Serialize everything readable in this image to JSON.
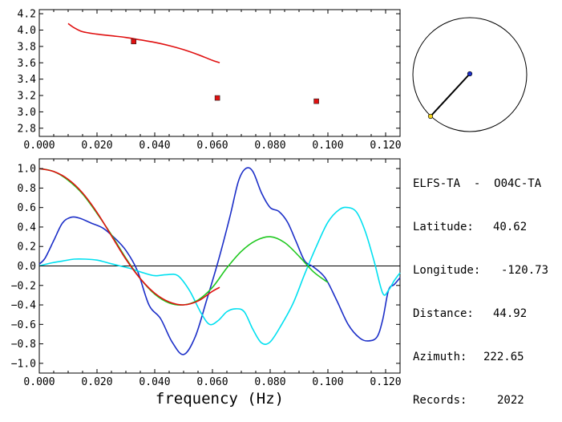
{
  "station": {
    "title": "ELFS-TA  -  O04C-TA",
    "rows": [
      {
        "label": "Latitude:",
        "value": "40.62"
      },
      {
        "label": "Longitude:",
        "value": "-120.73"
      },
      {
        "label": "Distance:",
        "value": "44.92"
      },
      {
        "label": "Azimuth:",
        "value": "222.65"
      },
      {
        "label": "Records:",
        "value": "2022"
      }
    ]
  },
  "chart_data": [
    {
      "type": "scatter",
      "title": "",
      "xlabel": "",
      "ylabel": "",
      "xlim": [
        0.0,
        0.125
      ],
      "ylim": [
        2.7,
        4.25
      ],
      "x_ticks": [
        0.0,
        0.02,
        0.04,
        0.06,
        0.08,
        0.1,
        0.12
      ],
      "x_tick_labels": [
        "0.000",
        "0.020",
        "0.040",
        "0.060",
        "0.080",
        "0.100",
        "0.120"
      ],
      "y_ticks": [
        2.8,
        3.0,
        3.2,
        3.4,
        3.6,
        3.8,
        4.0,
        4.2
      ],
      "y_tick_labels": [
        "2.8",
        "3.0",
        "3.2",
        "3.4",
        "3.6",
        "3.8",
        "4.0",
        "4.2"
      ],
      "series": [
        {
          "kind": "line",
          "color": "#e01010",
          "x": [
            0.01,
            0.012,
            0.015,
            0.02,
            0.025,
            0.03,
            0.035,
            0.04,
            0.045,
            0.05,
            0.055,
            0.06,
            0.0625
          ],
          "y": [
            4.08,
            4.03,
            3.98,
            3.95,
            3.93,
            3.91,
            3.88,
            3.85,
            3.81,
            3.76,
            3.7,
            3.63,
            3.6
          ]
        },
        {
          "kind": "points",
          "color": "#e01010",
          "x": [
            0.0327,
            0.0617,
            0.096
          ],
          "y": [
            3.86,
            3.17,
            3.13
          ]
        }
      ]
    },
    {
      "type": "line",
      "title": "",
      "xlabel": "frequency (Hz)",
      "ylabel": "",
      "xlim": [
        0.0,
        0.125
      ],
      "ylim": [
        -1.1,
        1.1
      ],
      "x_ticks": [
        0.0,
        0.02,
        0.04,
        0.06,
        0.08,
        0.1,
        0.12
      ],
      "x_tick_labels": [
        "0.000",
        "0.020",
        "0.040",
        "0.060",
        "0.080",
        "0.100",
        "0.120"
      ],
      "y_ticks": [
        1.0,
        0.8,
        0.6,
        0.4,
        0.2,
        0.0,
        -0.2,
        -0.4,
        -0.6,
        -0.8,
        -1.0
      ],
      "y_tick_labels": [
        "1.0",
        "0.8",
        "0.6",
        "0.4",
        "0.2",
        "0.0",
        "−0.2",
        "−0.4",
        "−0.6",
        "−0.8",
        "−1.0"
      ],
      "zero_line": true,
      "series": [
        {
          "color": "#1c2fc8",
          "x": [
            0.0,
            0.002,
            0.005,
            0.008,
            0.011,
            0.014,
            0.018,
            0.022,
            0.026,
            0.03,
            0.034,
            0.038,
            0.042,
            0.046,
            0.05,
            0.054,
            0.058,
            0.062,
            0.066,
            0.069,
            0.0715,
            0.074,
            0.077,
            0.08,
            0.083,
            0.086,
            0.089,
            0.092,
            0.095,
            0.099,
            0.103,
            0.107,
            0.111,
            0.114,
            0.117,
            0.119,
            0.121,
            0.123,
            0.125
          ],
          "y": [
            0.02,
            0.08,
            0.26,
            0.44,
            0.5,
            0.49,
            0.44,
            0.39,
            0.29,
            0.16,
            -0.05,
            -0.4,
            -0.54,
            -0.78,
            -0.91,
            -0.73,
            -0.35,
            0.05,
            0.5,
            0.87,
            1.0,
            0.97,
            0.75,
            0.6,
            0.56,
            0.45,
            0.25,
            0.05,
            -0.01,
            -0.12,
            -0.35,
            -0.6,
            -0.74,
            -0.77,
            -0.73,
            -0.55,
            -0.25,
            -0.19,
            -0.12
          ]
        },
        {
          "color": "#00e0f0",
          "x": [
            0.0,
            0.004,
            0.008,
            0.012,
            0.016,
            0.02,
            0.024,
            0.028,
            0.032,
            0.036,
            0.04,
            0.044,
            0.048,
            0.052,
            0.056,
            0.059,
            0.062,
            0.065,
            0.068,
            0.071,
            0.074,
            0.077,
            0.08,
            0.084,
            0.088,
            0.092,
            0.096,
            0.1,
            0.104,
            0.107,
            0.11,
            0.113,
            0.116,
            0.119,
            0.121,
            0.123,
            0.125
          ],
          "y": [
            0.0,
            0.03,
            0.05,
            0.07,
            0.07,
            0.06,
            0.03,
            0.0,
            -0.03,
            -0.07,
            -0.1,
            -0.09,
            -0.1,
            -0.25,
            -0.48,
            -0.6,
            -0.56,
            -0.47,
            -0.44,
            -0.47,
            -0.65,
            -0.79,
            -0.78,
            -0.6,
            -0.38,
            -0.08,
            0.2,
            0.45,
            0.58,
            0.6,
            0.55,
            0.35,
            0.05,
            -0.28,
            -0.25,
            -0.15,
            -0.07
          ]
        },
        {
          "color": "#20c820",
          "x": [
            0.0,
            0.005,
            0.01,
            0.015,
            0.02,
            0.025,
            0.03,
            0.035,
            0.04,
            0.045,
            0.05,
            0.055,
            0.06,
            0.065,
            0.07,
            0.075,
            0.08,
            0.085,
            0.09,
            0.095,
            0.1
          ],
          "y": [
            1.0,
            0.97,
            0.88,
            0.74,
            0.54,
            0.32,
            0.08,
            -0.13,
            -0.29,
            -0.38,
            -0.4,
            -0.35,
            -0.22,
            -0.02,
            0.15,
            0.26,
            0.3,
            0.24,
            0.1,
            -0.06,
            -0.17
          ]
        },
        {
          "color": "#e01010",
          "x": [
            0.0,
            0.005,
            0.01,
            0.015,
            0.02,
            0.025,
            0.03,
            0.035,
            0.04,
            0.045,
            0.05,
            0.055,
            0.06,
            0.0625
          ],
          "y": [
            1.0,
            0.97,
            0.89,
            0.75,
            0.55,
            0.31,
            0.07,
            -0.13,
            -0.28,
            -0.37,
            -0.4,
            -0.36,
            -0.26,
            -0.22
          ]
        }
      ]
    }
  ],
  "map_inset": {
    "circle_color": "#000000",
    "line_color": "#000000",
    "center_station_color": "#1c2fc8",
    "remote_station_color": "#f0d020"
  }
}
